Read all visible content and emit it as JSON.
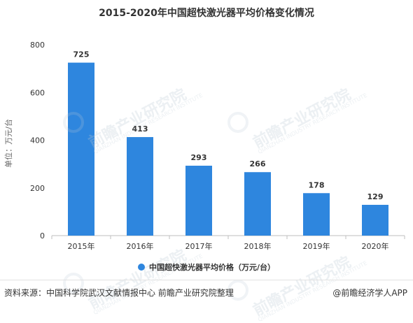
{
  "chart_data": {
    "type": "bar",
    "title": "2015-2020年中国超快激光器平均价格变化情况",
    "ylabel": "单位：万元/台",
    "xlabel": "",
    "categories": [
      "2015年",
      "2016年",
      "2017年",
      "2018年",
      "2019年",
      "2020年"
    ],
    "series": [
      {
        "name": "中国超快激光器平均价格（万元/台）",
        "values": [
          725,
          413,
          293,
          266,
          178,
          129
        ]
      }
    ],
    "data_labels": [
      "725",
      "413",
      "293",
      "266",
      "178",
      "129"
    ],
    "ylim": [
      0,
      800
    ],
    "yticks": [
      0,
      200,
      400,
      600,
      800
    ],
    "ytick_labels": [
      "0",
      "200",
      "400",
      "600",
      "800"
    ],
    "grid": false,
    "legend_position": "bottom",
    "colors": {
      "bar": "#2e86de",
      "axis": "#bfbfbf",
      "text": "#333333"
    }
  },
  "footer": {
    "source": "资料来源：中国科学院武汉文献情报中心 前瞻产业研究院整理",
    "brand": "@前瞻经济学人APP"
  },
  "watermark": {
    "text": "前瞻产业研究院",
    "sub": "QIANZHAN INDUSTRY RESEARCH INSTITUTE"
  }
}
